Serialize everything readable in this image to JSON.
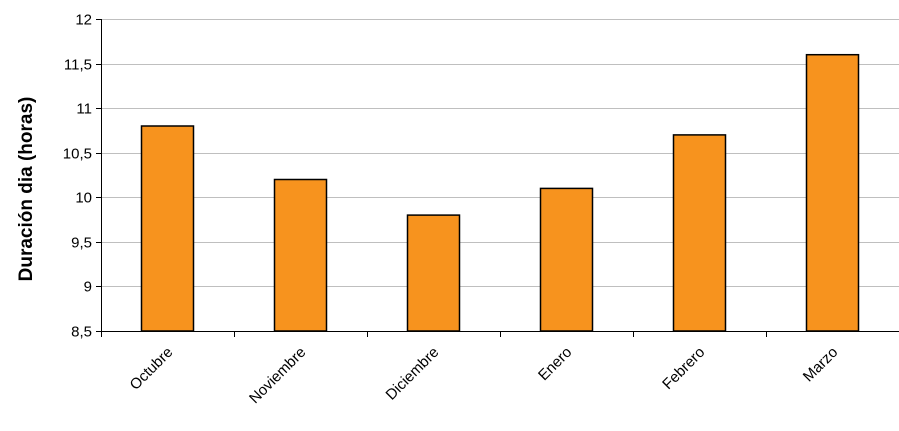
{
  "chart_data": {
    "type": "bar",
    "title": "",
    "xlabel": "",
    "ylabel": "Duración dia (horas)",
    "categories": [
      "Octubre",
      "Noviembre",
      "Diciembre",
      "Enero",
      "Febrero",
      "Marzo"
    ],
    "values": [
      10.8,
      10.2,
      9.8,
      10.1,
      10.7,
      11.6
    ],
    "ylim": [
      8.5,
      12
    ],
    "yticks": [
      8.5,
      9,
      9.5,
      10,
      10.5,
      11,
      11.5,
      12
    ],
    "ytick_labels": [
      "8,5",
      "9",
      "9,5",
      "10",
      "10,5",
      "11",
      "11,5",
      "12"
    ],
    "grid": true,
    "bar_color": "#F7931E",
    "bar_edge_color": "#000000",
    "grid_color": "#BFBFBF"
  }
}
